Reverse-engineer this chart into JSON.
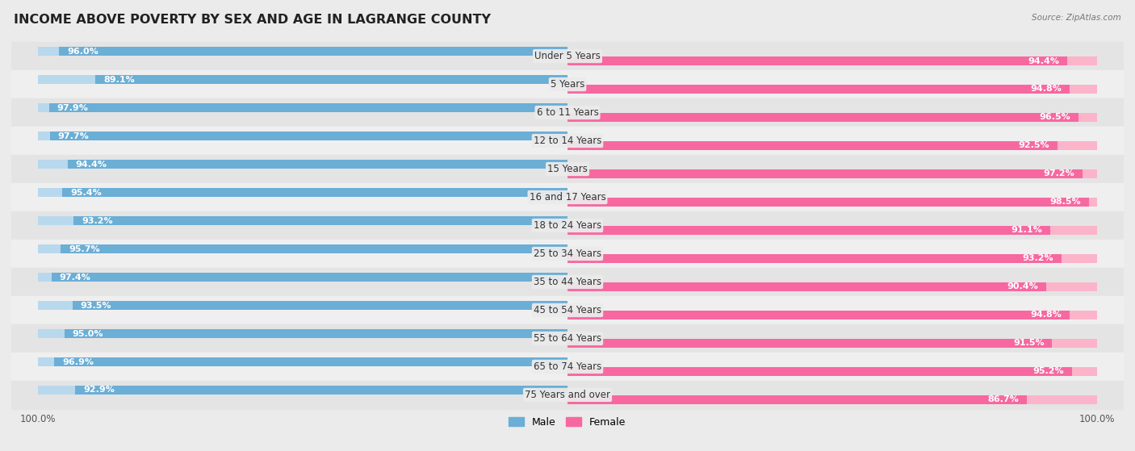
{
  "title": "INCOME ABOVE POVERTY BY SEX AND AGE IN LAGRANGE COUNTY",
  "source": "Source: ZipAtlas.com",
  "categories": [
    "Under 5 Years",
    "5 Years",
    "6 to 11 Years",
    "12 to 14 Years",
    "15 Years",
    "16 and 17 Years",
    "18 to 24 Years",
    "25 to 34 Years",
    "35 to 44 Years",
    "45 to 54 Years",
    "55 to 64 Years",
    "65 to 74 Years",
    "75 Years and over"
  ],
  "male_values": [
    96.0,
    89.1,
    97.9,
    97.7,
    94.4,
    95.4,
    93.2,
    95.7,
    97.4,
    93.5,
    95.0,
    96.9,
    92.9
  ],
  "female_values": [
    94.4,
    94.8,
    96.5,
    92.5,
    97.2,
    98.5,
    91.1,
    93.2,
    90.4,
    94.8,
    91.5,
    95.2,
    86.7
  ],
  "male_color": "#6baed6",
  "male_color_light": "#b8d8ed",
  "female_color": "#f768a1",
  "female_color_light": "#fbb4ca",
  "bg_color": "#ebebeb",
  "row_bg_even": "#e8e8e8",
  "row_bg_odd": "#f2f2f2",
  "title_fontsize": 11.5,
  "label_fontsize": 8.5,
  "value_fontsize": 8.0,
  "axis_max": 100.0,
  "legend_male": "Male",
  "legend_female": "Female"
}
